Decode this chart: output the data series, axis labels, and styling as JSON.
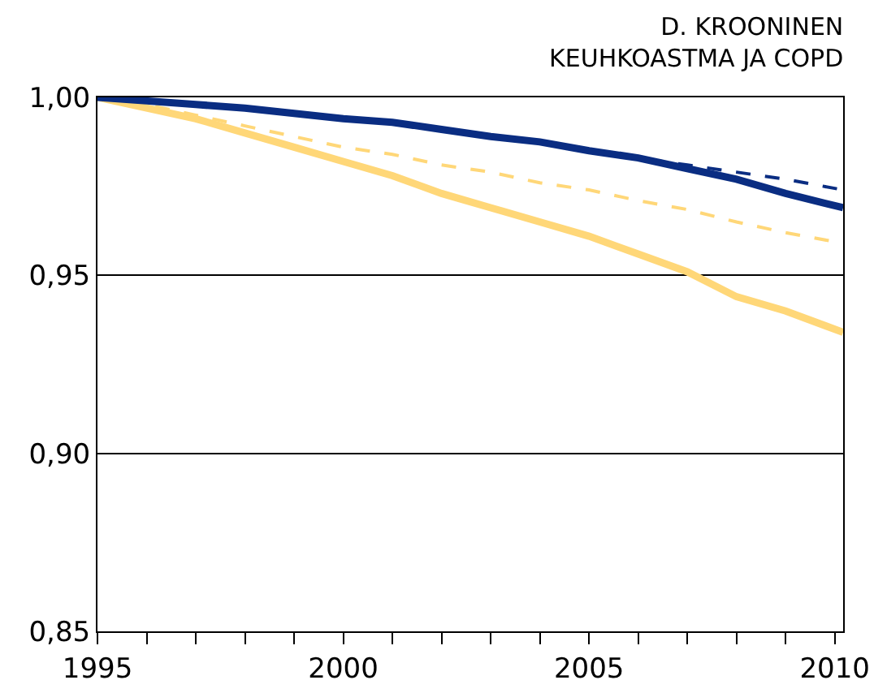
{
  "chart_data": {
    "type": "line",
    "title": "D. KROONINEN\nKEUHKOASTMA JA COPD",
    "xlim": [
      1995,
      2010.17
    ],
    "ylim": [
      0.85,
      1.0
    ],
    "xticks": [
      1995,
      {
        "value": 1996,
        "label": null
      },
      {
        "value": 1997,
        "label": null
      },
      {
        "value": 1998,
        "label": null
      },
      {
        "value": 1999,
        "label": null
      },
      2000,
      {
        "value": 2001,
        "label": null
      },
      {
        "value": 2002,
        "label": null
      },
      {
        "value": 2003,
        "label": null
      },
      {
        "value": 2004,
        "label": null
      },
      2005,
      {
        "value": 2006,
        "label": null
      },
      {
        "value": 2007,
        "label": null
      },
      {
        "value": 2008,
        "label": null
      },
      {
        "value": 2009,
        "label": null
      },
      2010
    ],
    "yticks": [
      {
        "value": 0.85,
        "label": "0,85"
      },
      {
        "value": 0.9,
        "label": "0,90"
      },
      {
        "value": 0.95,
        "label": "0,95"
      },
      {
        "value": 1.0,
        "label": "1,00"
      }
    ],
    "grid": "y",
    "x": [
      1995,
      1996,
      1997,
      1998,
      1999,
      2000,
      2001,
      2002,
      2003,
      2004,
      2005,
      2006,
      2007,
      2008,
      2009,
      2010.17
    ],
    "series": [
      {
        "color": "#ffd778",
        "line_style": "dashed",
        "values": [
          1.0,
          0.998,
          0.995,
          0.992,
          0.989,
          0.986,
          0.984,
          0.981,
          0.979,
          0.976,
          0.974,
          0.971,
          0.9685,
          0.965,
          0.962,
          0.959
        ]
      },
      {
        "color": "#ffd778",
        "line_style": "solid",
        "values": [
          1.0,
          0.997,
          0.994,
          0.99,
          0.986,
          0.982,
          0.978,
          0.973,
          0.969,
          0.965,
          0.961,
          0.956,
          0.951,
          0.944,
          0.94,
          0.934
        ]
      },
      {
        "color": "#0a2d82",
        "line_style": "dashed",
        "values": [
          1.0,
          0.999,
          0.998,
          0.997,
          0.9955,
          0.994,
          0.993,
          0.991,
          0.989,
          0.9875,
          0.985,
          0.983,
          0.981,
          0.979,
          0.977,
          0.974
        ]
      },
      {
        "color": "#0a2d82",
        "line_style": "solid",
        "values": [
          1.0,
          0.999,
          0.998,
          0.997,
          0.9955,
          0.994,
          0.993,
          0.991,
          0.989,
          0.9875,
          0.985,
          0.983,
          0.98,
          0.977,
          0.973,
          0.969
        ]
      }
    ]
  }
}
